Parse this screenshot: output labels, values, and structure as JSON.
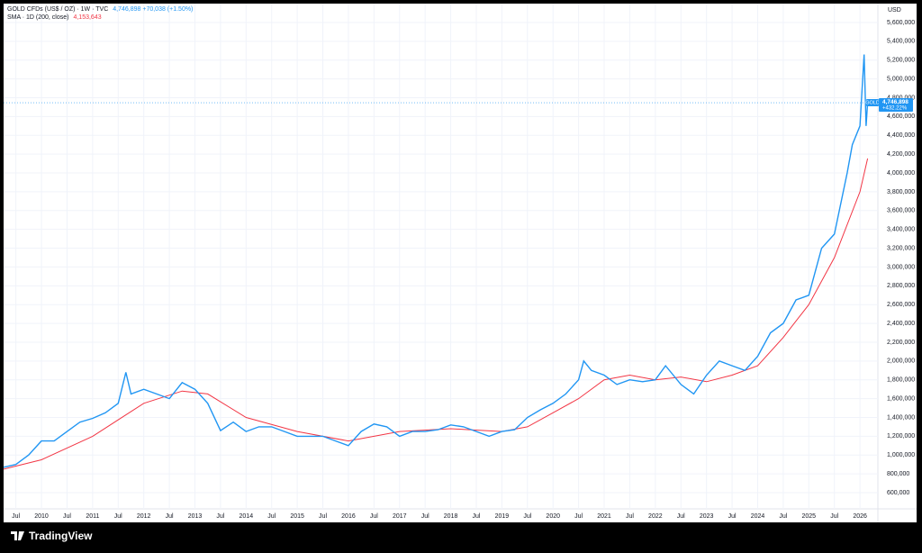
{
  "chart_data": {
    "type": "line",
    "axis_unit": "USD",
    "brand": "TradingView",
    "xlim": [
      2009.26,
      2026.35
    ],
    "ylim": [
      427600,
      5801000
    ],
    "grid": true,
    "xticks": [
      {
        "value": 2009.5,
        "label": "Jul"
      },
      2010,
      {
        "value": 2010.5,
        "label": "Jul"
      },
      2011,
      {
        "value": 2011.5,
        "label": "Jul"
      },
      2012,
      {
        "value": 2012.5,
        "label": "Jul"
      },
      2013,
      {
        "value": 2013.5,
        "label": "Jul"
      },
      2014,
      {
        "value": 2014.5,
        "label": "Jul"
      },
      2015,
      {
        "value": 2015.5,
        "label": "Jul"
      },
      2016,
      {
        "value": 2016.5,
        "label": "Jul"
      },
      2017,
      {
        "value": 2017.5,
        "label": "Jul"
      },
      2018,
      {
        "value": 2018.5,
        "label": "Jul"
      },
      2019,
      {
        "value": 2019.5,
        "label": "Jul"
      },
      2020,
      {
        "value": 2020.5,
        "label": "Jul"
      },
      2021,
      {
        "value": 2021.5,
        "label": "Jul"
      },
      2022,
      {
        "value": 2022.5,
        "label": "Jul"
      },
      2023,
      {
        "value": 2023.5,
        "label": "Jul"
      },
      2024,
      {
        "value": 2024.5,
        "label": "Jul"
      },
      2025,
      {
        "value": 2025.5,
        "label": "Jul"
      },
      2026
    ],
    "yticks": [
      {
        "value": 600000,
        "label": "600,000"
      },
      {
        "value": 800000,
        "label": "800,000"
      },
      {
        "value": 1000000,
        "label": "1,000,000"
      },
      {
        "value": 1200000,
        "label": "1,200,000"
      },
      {
        "value": 1400000,
        "label": "1,400,000"
      },
      {
        "value": 1600000,
        "label": "1,600,000"
      },
      {
        "value": 1800000,
        "label": "1,800,000"
      },
      {
        "value": 2000000,
        "label": "2,000,000"
      },
      {
        "value": 2200000,
        "label": "2,200,000"
      },
      {
        "value": 2400000,
        "label": "2,400,000"
      },
      {
        "value": 2600000,
        "label": "2,600,000"
      },
      {
        "value": 2800000,
        "label": "2,800,000"
      },
      {
        "value": 3000000,
        "label": "3,000,000"
      },
      {
        "value": 3200000,
        "label": "3,200,000"
      },
      {
        "value": 3400000,
        "label": "3,400,000"
      },
      {
        "value": 3600000,
        "label": "3,600,000"
      },
      {
        "value": 3800000,
        "label": "3,800,000"
      },
      {
        "value": 4000000,
        "label": "4,000,000"
      },
      {
        "value": 4200000,
        "label": "4,200,000"
      },
      {
        "value": 4400000,
        "label": "4,400,000"
      },
      {
        "value": 4600000,
        "label": "4,600,000"
      },
      {
        "value": 4800000,
        "label": "4,800,000"
      },
      {
        "value": 5000000,
        "label": "5,000,000"
      },
      {
        "value": 5200000,
        "label": "5,200,000"
      },
      {
        "value": 5400000,
        "label": "5,400,000"
      },
      {
        "value": 5600000,
        "label": "5,600,000"
      }
    ],
    "series": [
      {
        "name": "GOLD CFDs (US$ / OZ) · 1W · TVC",
        "legend_value": "4,746,898 +70,038 (+1.50%)",
        "color": "#2196f3",
        "x": [
          2009.26,
          2009.5,
          2009.75,
          2010,
          2010.25,
          2010.5,
          2010.75,
          2011,
          2011.25,
          2011.5,
          2011.65,
          2011.75,
          2012,
          2012.25,
          2012.5,
          2012.75,
          2013,
          2013.25,
          2013.5,
          2013.75,
          2014,
          2014.25,
          2014.5,
          2014.75,
          2015,
          2015.25,
          2015.5,
          2015.75,
          2016,
          2016.25,
          2016.5,
          2016.75,
          2017,
          2017.25,
          2017.5,
          2017.75,
          2018,
          2018.25,
          2018.5,
          2018.75,
          2019,
          2019.25,
          2019.5,
          2019.75,
          2020,
          2020.25,
          2020.5,
          2020.6,
          2020.75,
          2021,
          2021.25,
          2021.5,
          2021.75,
          2022,
          2022.2,
          2022.5,
          2022.75,
          2023,
          2023.25,
          2023.5,
          2023.75,
          2024,
          2024.25,
          2024.5,
          2024.75,
          2025,
          2025.25,
          2025.5,
          2025.75,
          2025.85,
          2026,
          2026.08,
          2026.12,
          2026.15
        ],
        "values": [
          870000,
          900000,
          1000000,
          1150000,
          1150000,
          1250000,
          1350000,
          1390000,
          1450000,
          1550000,
          1880000,
          1650000,
          1700000,
          1650000,
          1600000,
          1770000,
          1700000,
          1550000,
          1260000,
          1350000,
          1250000,
          1300000,
          1300000,
          1250000,
          1200000,
          1200000,
          1200000,
          1150000,
          1100000,
          1250000,
          1330000,
          1300000,
          1200000,
          1250000,
          1250000,
          1270000,
          1320000,
          1300000,
          1250000,
          1200000,
          1250000,
          1270000,
          1400000,
          1480000,
          1550000,
          1650000,
          1800000,
          2000000,
          1900000,
          1850000,
          1750000,
          1800000,
          1780000,
          1800000,
          1950000,
          1750000,
          1650000,
          1850000,
          2000000,
          1950000,
          1900000,
          2050000,
          2300000,
          2400000,
          2650000,
          2700000,
          3200000,
          3350000,
          4000000,
          4300000,
          4500000,
          5260000,
          4500000,
          4746898
        ]
      },
      {
        "name": "SMA · 1D (200, close)",
        "legend_value": "4,153,643",
        "color": "#f23645",
        "x": [
          2009.26,
          2010,
          2011,
          2012,
          2012.75,
          2013.25,
          2014,
          2015,
          2016,
          2016.5,
          2017,
          2018,
          2019,
          2019.5,
          2020,
          2020.5,
          2021,
          2021.5,
          2022,
          2022.5,
          2023,
          2023.5,
          2024,
          2024.5,
          2025,
          2025.5,
          2026,
          2026.15
        ],
        "values": [
          850000,
          950000,
          1200000,
          1550000,
          1680000,
          1650000,
          1400000,
          1250000,
          1150000,
          1200000,
          1250000,
          1280000,
          1250000,
          1300000,
          1450000,
          1600000,
          1800000,
          1850000,
          1800000,
          1830000,
          1780000,
          1850000,
          1950000,
          2250000,
          2600000,
          3100000,
          3800000,
          4153643
        ]
      }
    ],
    "last_price": {
      "name": "GOLD",
      "value_label": "4,746,898",
      "change": "+432.22%"
    }
  }
}
